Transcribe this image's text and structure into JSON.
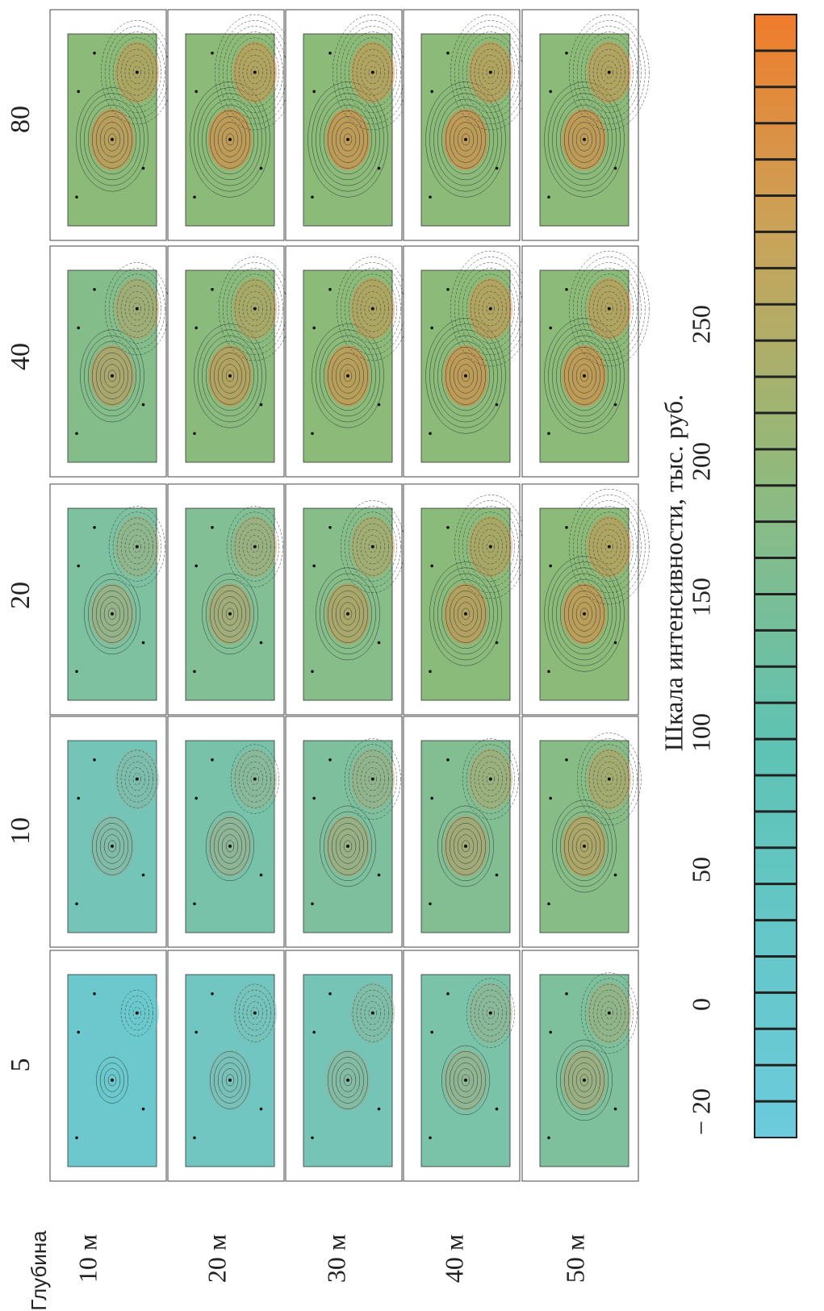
{
  "figure": {
    "depth_title": "Глубина",
    "depths": [
      "10 м",
      "20 м",
      "30 м",
      "40 м",
      "50 м"
    ],
    "columns": [
      "5",
      "10",
      "20",
      "40",
      "80"
    ],
    "scale": {
      "title": "Шкала интенсивности, тыс. руб.",
      "ticks": [
        "− 20",
        "0",
        "50",
        "100",
        "150",
        "200",
        "250"
      ]
    }
  }
}
